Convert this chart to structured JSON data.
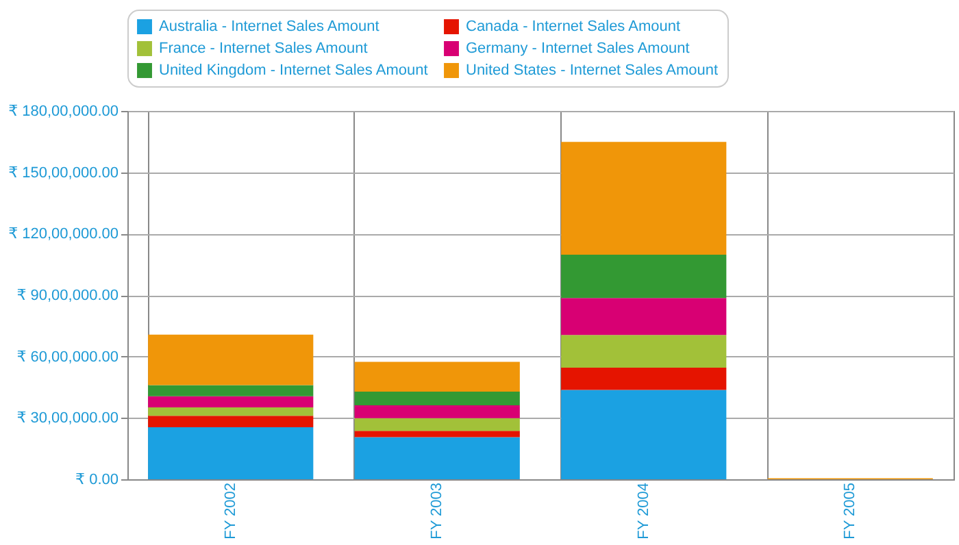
{
  "chart_data": {
    "type": "bar",
    "stacked": true,
    "categories": [
      "FY 2002",
      "FY 2003",
      "FY 2004",
      "FY 2005"
    ],
    "series": [
      {
        "name": "Australia - Internet Sales Amount",
        "color": "#1ba1e2",
        "values": [
          2540000,
          2060000,
          4370000,
          0
        ]
      },
      {
        "name": "Canada - Internet Sales Amount",
        "color": "#e51400",
        "values": [
          560000,
          310000,
          1080000,
          0
        ]
      },
      {
        "name": "France - Internet Sales Amount",
        "color": "#a2c139",
        "values": [
          410000,
          620000,
          1600000,
          0
        ]
      },
      {
        "name": "Germany - Internet Sales Amount",
        "color": "#d80073",
        "values": [
          550000,
          620000,
          1810000,
          0
        ]
      },
      {
        "name": "United Kingdom - Internet Sales Amount",
        "color": "#339933",
        "values": [
          540000,
          670000,
          2110000,
          0
        ]
      },
      {
        "name": "United States - Internet Sales Amount",
        "color": "#f09609",
        "values": [
          2470000,
          1460000,
          5520000,
          50000
        ]
      }
    ],
    "ylim": [
      0,
      18000000
    ],
    "yticks": [
      {
        "value": 0,
        "label": "₹ 0.00"
      },
      {
        "value": 3000000,
        "label": "₹ 30,00,000.00"
      },
      {
        "value": 6000000,
        "label": "₹ 60,00,000.00"
      },
      {
        "value": 9000000,
        "label": "₹ 90,00,000.00"
      },
      {
        "value": 12000000,
        "label": "₹ 120,00,000.00"
      },
      {
        "value": 15000000,
        "label": "₹ 150,00,000.00"
      },
      {
        "value": 18000000,
        "label": "₹ 180,00,000.00"
      }
    ],
    "grid": true,
    "legend": "top"
  }
}
